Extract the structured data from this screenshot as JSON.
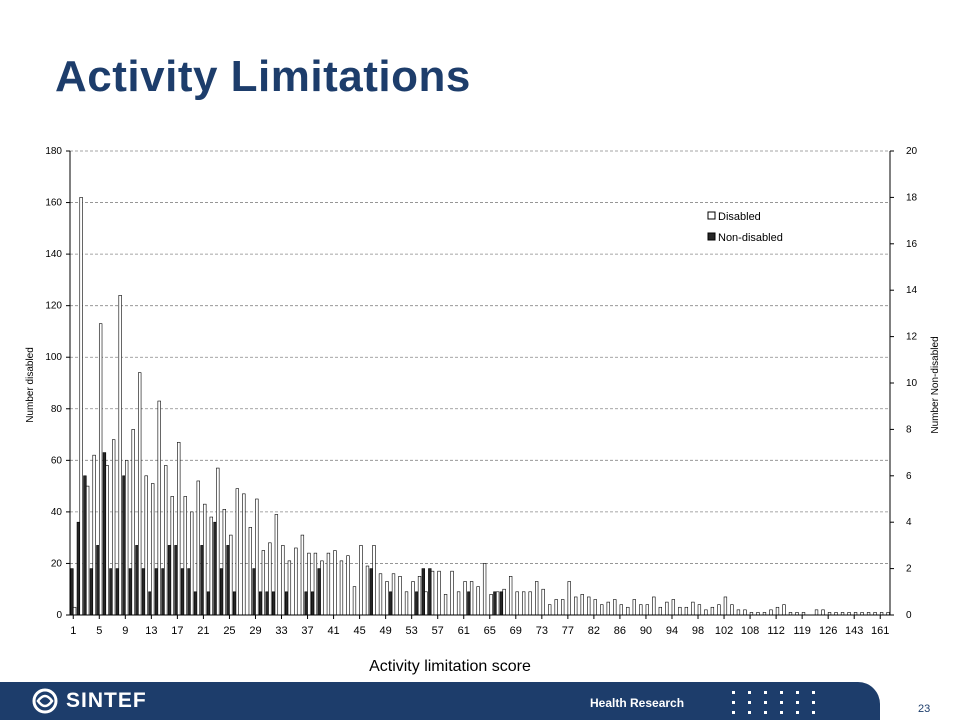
{
  "slide": {
    "title": "Activity Limitations",
    "page_number": "23"
  },
  "footer": {
    "brand": "SINTEF",
    "label": "Health Research"
  },
  "colors": {
    "title": "#1d3d6b",
    "footer": "#1d3d6b",
    "disabled_fill": "#ffffff",
    "non_disabled_fill": "#262626"
  },
  "chart_data": {
    "type": "bar",
    "xlabel": "Activity limitation score",
    "ylabel_left": "Number disabled",
    "ylabel_right": "Number Non-disabled",
    "ylim_left": [
      0,
      180
    ],
    "ylim_right": [
      0,
      20
    ],
    "yticks_left": [
      0,
      20,
      40,
      60,
      80,
      100,
      120,
      140,
      160,
      180
    ],
    "yticks_right": [
      0,
      2,
      4,
      6,
      8,
      10,
      12,
      14,
      16,
      18,
      20
    ],
    "grid": true,
    "legend_position": "top-right",
    "x_tick_labels": [
      "1",
      "5",
      "9",
      "13",
      "17",
      "21",
      "25",
      "29",
      "33",
      "37",
      "41",
      "45",
      "49",
      "53",
      "57",
      "61",
      "65",
      "69",
      "73",
      "77",
      "82",
      "86",
      "90",
      "94",
      "98",
      "102",
      "108",
      "112",
      "119",
      "126",
      "143",
      "161"
    ],
    "series": [
      {
        "name": "Disabled",
        "axis": "left",
        "values": [
          3,
          162,
          50,
          62,
          113,
          58,
          68,
          124,
          60,
          72,
          94,
          54,
          51,
          83,
          58,
          46,
          67,
          46,
          40,
          52,
          43,
          38,
          57,
          41,
          31,
          49,
          47,
          34,
          45,
          25,
          28,
          39,
          27,
          21,
          26,
          31,
          24,
          24,
          21,
          24,
          25,
          21,
          23,
          11,
          27,
          19,
          27,
          16,
          13,
          16,
          15,
          9,
          13,
          15,
          9,
          17,
          17,
          8,
          17,
          9,
          13,
          13,
          11,
          20,
          8,
          9,
          10,
          15,
          9,
          9,
          9,
          13,
          10,
          4,
          6,
          6,
          13,
          7,
          8,
          7,
          6,
          4,
          5,
          6,
          4,
          3,
          6,
          4,
          4,
          7,
          3,
          5,
          6,
          3,
          3,
          5,
          4,
          2,
          3,
          4,
          7,
          4,
          2,
          2,
          1,
          1,
          1,
          2,
          3,
          4,
          1,
          1,
          1,
          0,
          2,
          2,
          1,
          1,
          1,
          1,
          1,
          1,
          1,
          1,
          1,
          1
        ]
      },
      {
        "name": "Non-disabled",
        "axis": "right",
        "values": [
          2,
          4,
          6,
          2,
          3,
          7,
          2,
          2,
          6,
          2,
          3,
          2,
          1,
          2,
          2,
          3,
          3,
          2,
          2,
          1,
          3,
          1,
          4,
          2,
          3,
          1,
          0,
          0,
          2,
          1,
          1,
          1,
          0,
          1,
          0,
          0,
          1,
          1,
          2,
          0,
          0,
          0,
          0,
          0,
          0,
          0,
          2,
          0,
          0,
          1,
          0,
          0,
          0,
          1,
          2,
          2,
          0,
          0,
          0,
          0,
          0,
          1,
          0,
          0,
          0,
          1,
          1,
          0,
          0,
          0,
          0,
          0,
          0,
          0,
          0,
          0,
          0,
          0,
          0,
          0,
          0,
          0,
          0,
          0,
          0,
          0,
          0,
          0,
          0,
          0,
          0,
          0,
          0,
          0,
          0,
          0,
          0,
          0,
          0,
          0,
          0,
          0,
          0,
          0,
          0,
          0,
          0,
          0,
          0,
          0,
          0,
          0,
          0,
          0,
          0,
          0,
          0,
          0,
          0,
          0,
          0,
          0,
          0,
          0,
          0,
          0
        ]
      }
    ]
  }
}
